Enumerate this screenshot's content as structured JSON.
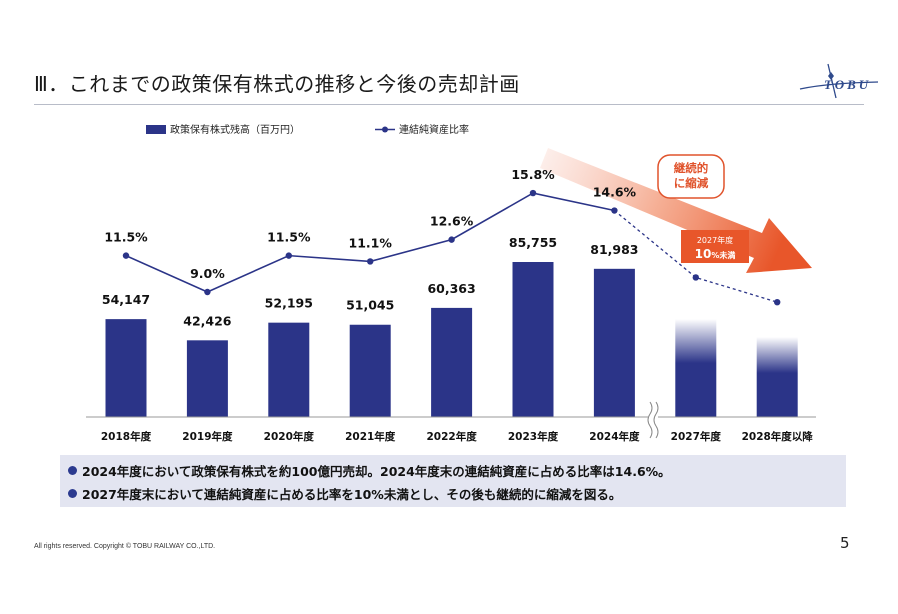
{
  "slide": {
    "title": "Ⅲ．これまでの政策保有株式の推移と今後の売却計画",
    "logo_text": "TOBU",
    "summary": [
      "2024年度において政策保有株式を約100億円売却。2024年度末の連結純資産に占める比率は14.6%。",
      "2027年度末において連結純資産に占める比率を10%未満とし、その後も継続的に縮減を図る。"
    ],
    "footer": "All rights reserved. Copyright © TOBU RAILWAY CO.,LTD.",
    "page_number": "5"
  },
  "chart_data": {
    "type": "bar",
    "categories": [
      "2018年度",
      "2019年度",
      "2020年度",
      "2021年度",
      "2022年度",
      "2023年度",
      "2024年度",
      "2027年度",
      "2028年度以降"
    ],
    "legend_placement": "top-left",
    "grid": false,
    "series": [
      {
        "name": "政策保有株式残高（百万円）",
        "kind": "bar",
        "color": "#2b3488",
        "values": [
          54147,
          42426,
          52195,
          51045,
          60363,
          85755,
          81983,
          null,
          null
        ],
        "labels": [
          "54,147",
          "42,426",
          "52,195",
          "51,045",
          "60,363",
          "85,755",
          "81,983",
          "",
          ""
        ]
      },
      {
        "name": "連結純資産比率",
        "kind": "line",
        "color": "#2b3488",
        "values": [
          11.5,
          9.0,
          11.5,
          11.1,
          12.6,
          15.8,
          14.6,
          10.0,
          8.3
        ],
        "labels": [
          "11.5%",
          "9.0%",
          "11.5%",
          "11.1%",
          "12.6%",
          "15.8%",
          "14.6%",
          "",
          ""
        ]
      }
    ],
    "annotations": {
      "reduction_label": "継続的\nに縮減",
      "target_box_year": "2027年度",
      "target_box_value": "10",
      "target_box_unit": "%未満",
      "break_mark": "≈"
    },
    "colors": {
      "bar": "#2b3488",
      "accent": "#e8562a",
      "accent_text": "#e0532c"
    }
  }
}
